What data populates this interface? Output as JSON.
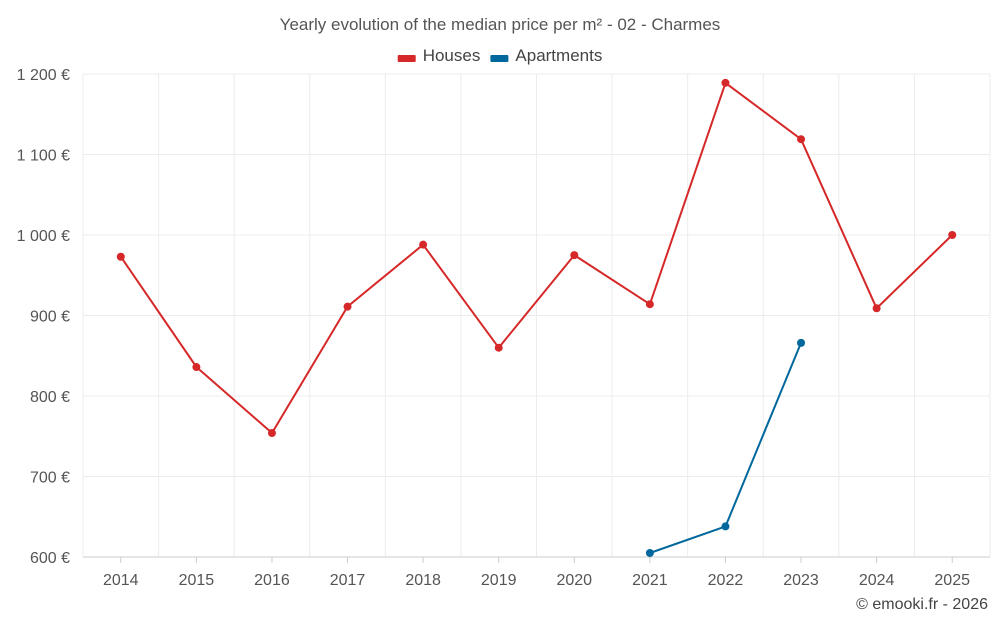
{
  "chart_data": {
    "type": "line",
    "title": "Yearly evolution of the median price per m² - 02 - Charmes",
    "categories": [
      "2014",
      "2015",
      "2016",
      "2017",
      "2018",
      "2019",
      "2020",
      "2021",
      "2022",
      "2023",
      "2024",
      "2025"
    ],
    "series": [
      {
        "name": "Houses",
        "color": "#d62828",
        "values": [
          973,
          836,
          754,
          911,
          988,
          860,
          975,
          914,
          1189,
          1119,
          909,
          1000
        ]
      },
      {
        "name": "Apartments",
        "color": "#00689c",
        "values": [
          null,
          null,
          null,
          null,
          null,
          null,
          null,
          605,
          638,
          866,
          null,
          null
        ]
      }
    ],
    "ylim": [
      600,
      1200
    ],
    "yticks": [
      600,
      700,
      800,
      900,
      1000,
      1100,
      1200
    ],
    "ytick_labels": [
      "600 €",
      "700 €",
      "800 €",
      "900 €",
      "1 000 €",
      "1 100 €",
      "1 200 €"
    ],
    "grid": true,
    "legend": "top-center",
    "xlabel": "",
    "ylabel": ""
  },
  "credit": "© emooki.fr - 2026"
}
